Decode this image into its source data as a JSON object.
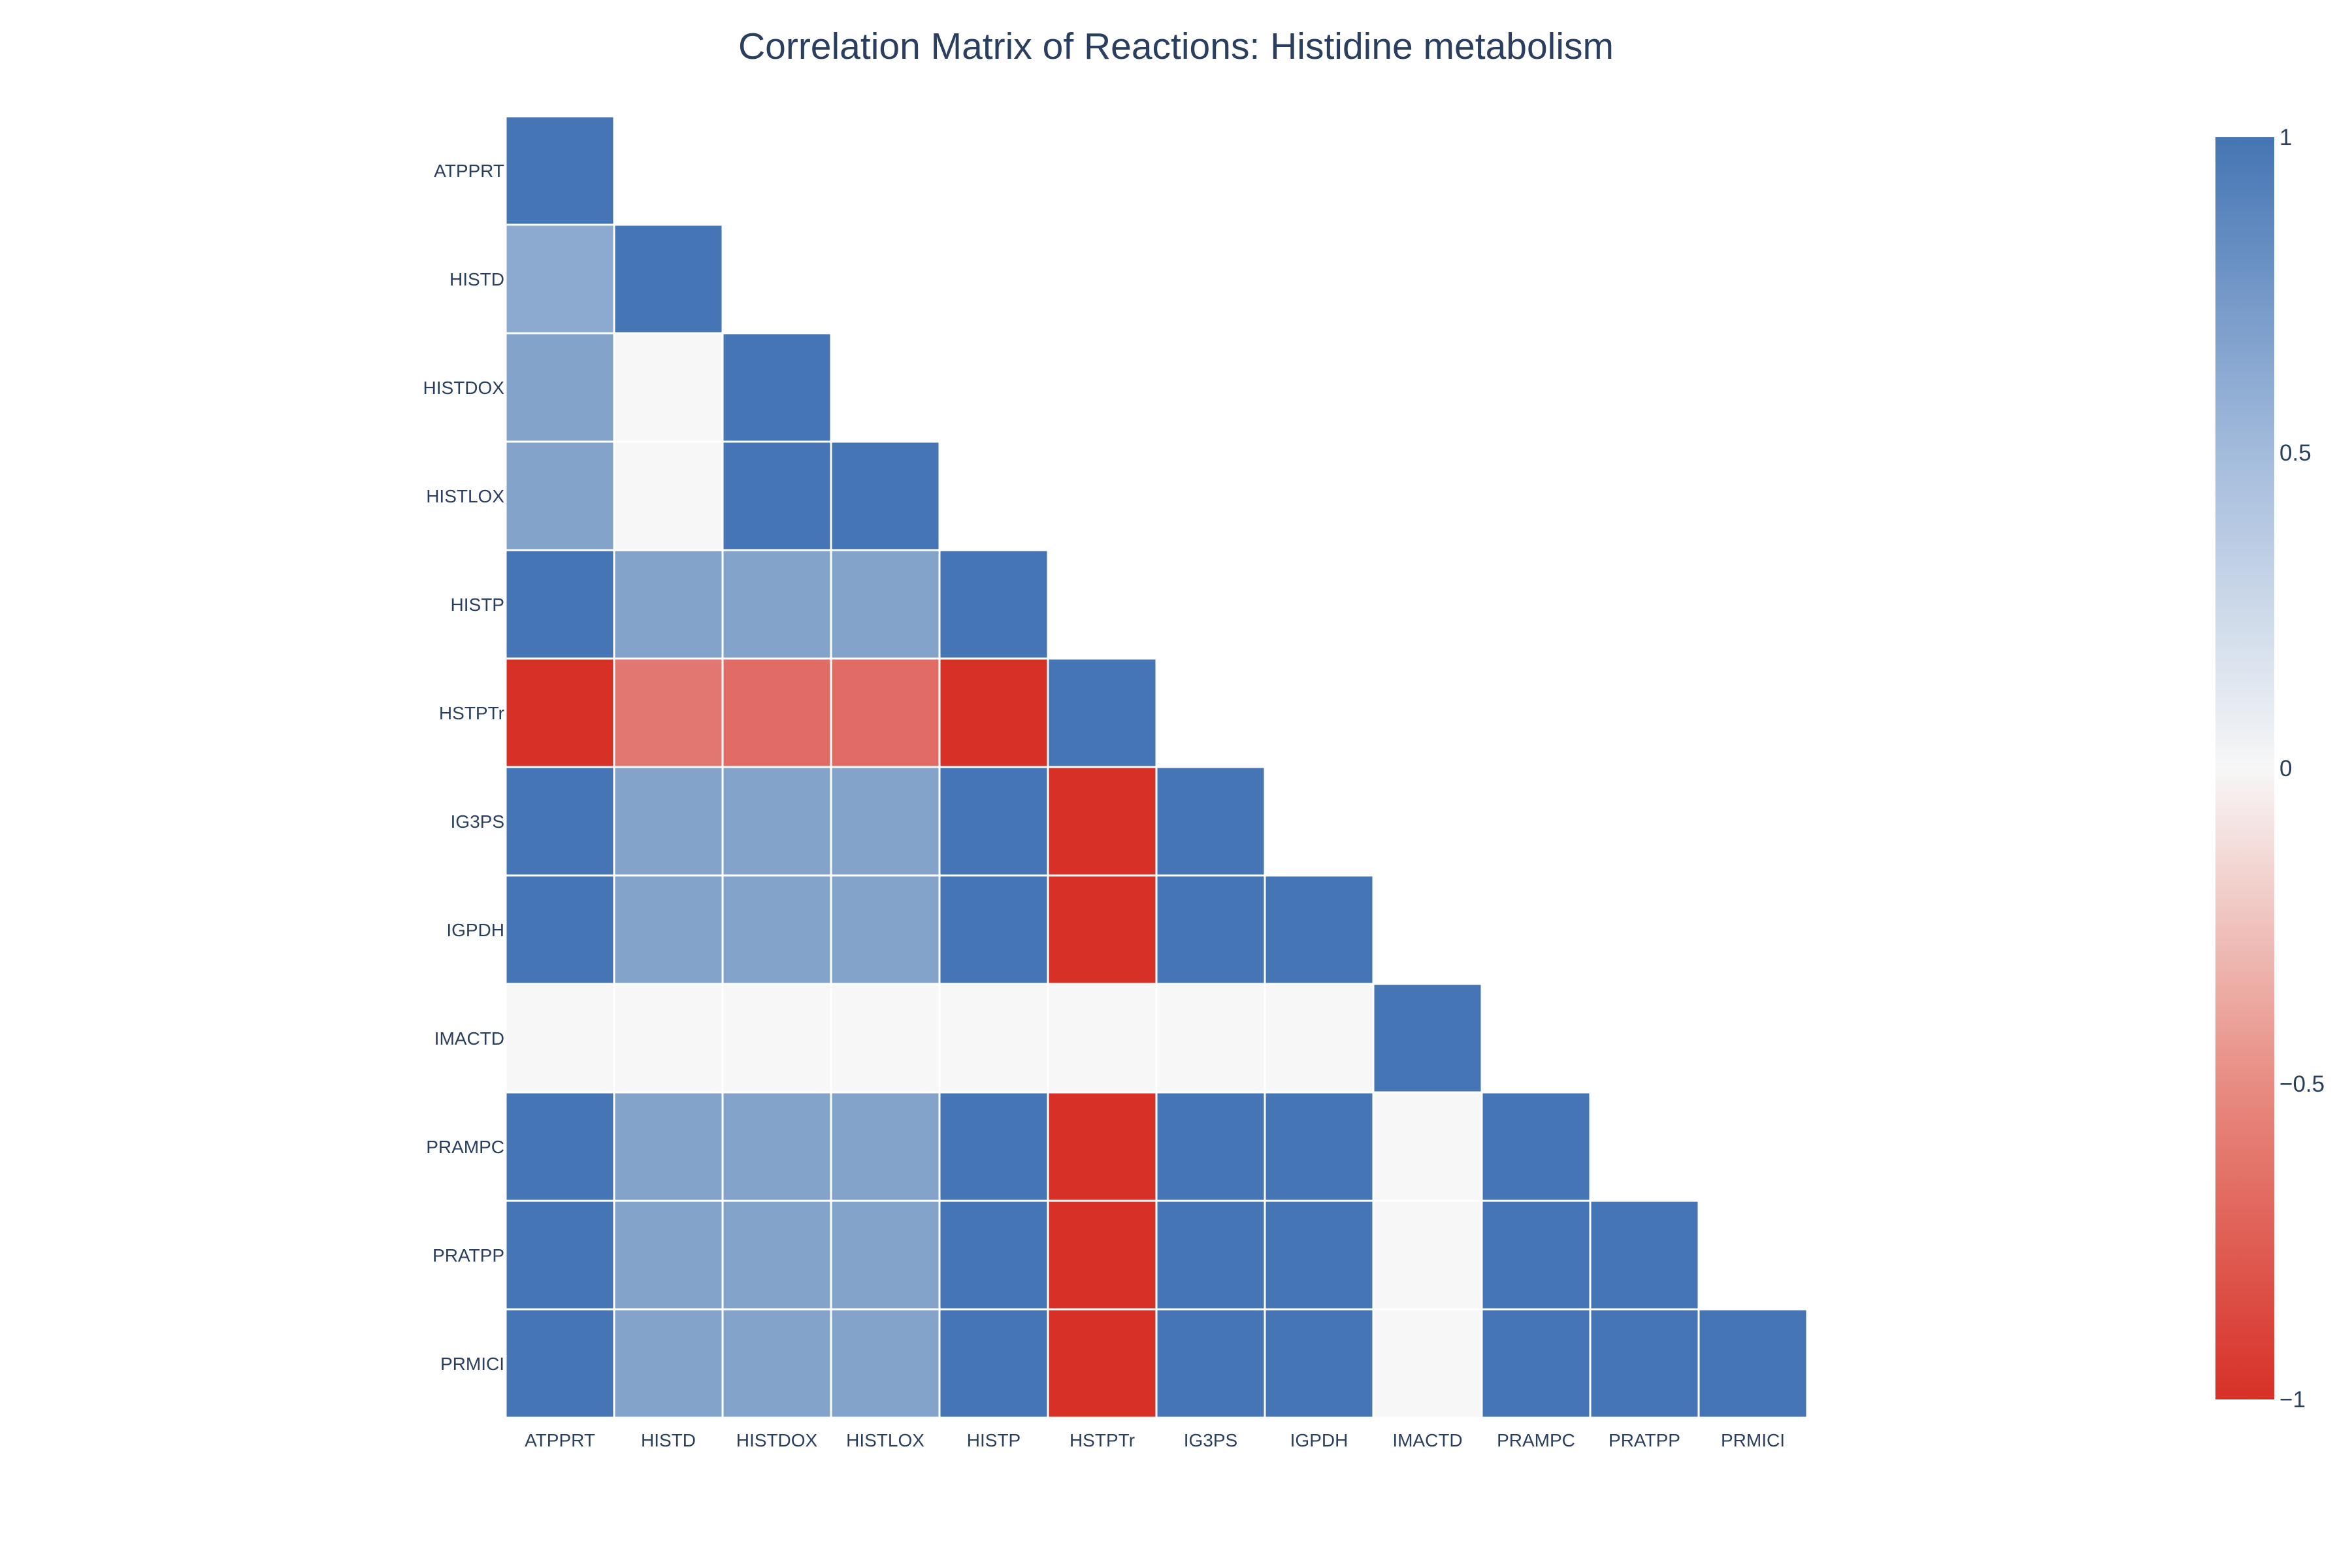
{
  "chart_data": {
    "type": "heatmap",
    "title": "Correlation Matrix of Reactions: Histidine metabolism",
    "labels": [
      "ATPPRT",
      "HISTD",
      "HISTDOX",
      "HISTLOX",
      "HISTP",
      "HSTPTr",
      "IG3PS",
      "IGPDH",
      "IMACTD",
      "PRAMPC",
      "PRATPP",
      "PRMICI"
    ],
    "values": [
      [
        1
      ],
      [
        0.6,
        1
      ],
      [
        0.65,
        0,
        1
      ],
      [
        0.65,
        0,
        1,
        1
      ],
      [
        1,
        0.65,
        0.65,
        0.65,
        1
      ],
      [
        -1,
        -0.65,
        -0.7,
        -0.7,
        -1,
        1
      ],
      [
        1,
        0.65,
        0.65,
        0.65,
        1,
        -1,
        1
      ],
      [
        1,
        0.65,
        0.65,
        0.65,
        1,
        -1,
        1,
        1
      ],
      [
        0,
        0,
        0,
        0,
        0,
        0,
        0,
        0,
        1
      ],
      [
        1,
        0.65,
        0.65,
        0.65,
        1,
        -1,
        1,
        1,
        0,
        1
      ],
      [
        1,
        0.65,
        0.65,
        0.65,
        1,
        -1,
        1,
        1,
        0,
        1,
        1
      ],
      [
        1,
        0.65,
        0.65,
        0.65,
        1,
        -1,
        1,
        1,
        0,
        1,
        1,
        1
      ]
    ],
    "zrange": [
      -1,
      1
    ],
    "colorscale": [
      [
        0,
        "#d73027"
      ],
      [
        0.5,
        "#f7f7f7"
      ],
      [
        1,
        "#4575b4"
      ]
    ],
    "colorbar_ticks": [
      "1",
      "0.5",
      "0",
      "−0.5",
      "−1"
    ],
    "colorbar_tick_values": [
      1,
      0.5,
      0,
      -0.5,
      -1
    ]
  }
}
